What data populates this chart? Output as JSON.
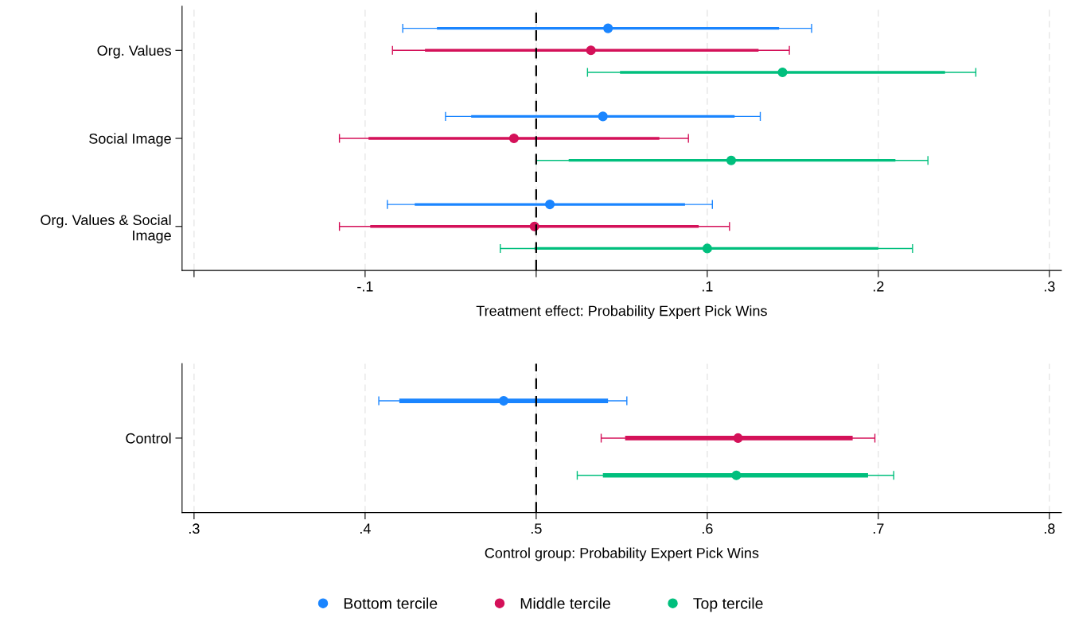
{
  "chart_data": [
    {
      "type": "scatter",
      "orientation": "horizontal",
      "xlabel": "Treatment effect: Probability Expert Pick Wins",
      "categories": [
        "Org. Values",
        "Social Image",
        "Org. Values & Social\nImage"
      ],
      "xlim": [
        -0.207,
        0.307
      ],
      "xticks": [
        {
          "value": -0.2,
          "label": null
        },
        {
          "value": -0.1,
          "label": "-.1"
        },
        {
          "value": 0,
          "label": null
        },
        {
          "value": 0.1,
          "label": ".1"
        },
        {
          "value": 0.2,
          "label": ".2"
        },
        {
          "value": 0.3,
          "label": ".3"
        }
      ],
      "grid": "x",
      "marker": "circle",
      "legend": "bottom",
      "ref_lines": [
        {
          "axis": "x",
          "value": 0,
          "color": "#000000",
          "line_style": "dashed"
        }
      ],
      "series": [
        {
          "name": "Bottom tercile",
          "color": "#1a85ff",
          "values": [
            0.042,
            0.039,
            0.008
          ],
          "errors": [
            [
              -0.078,
              0.161
            ],
            [
              -0.053,
              0.131
            ],
            [
              -0.087,
              0.103
            ]
          ]
        },
        {
          "name": "Middle tercile",
          "color": "#d41159",
          "values": [
            0.032,
            -0.013,
            -0.001
          ],
          "errors": [
            [
              -0.084,
              0.148
            ],
            [
              -0.115,
              0.089
            ],
            [
              -0.115,
              0.113
            ]
          ]
        },
        {
          "name": "Top tercile",
          "color": "#00bf7d",
          "values": [
            0.144,
            0.114,
            0.1
          ],
          "errors": [
            [
              0.03,
              0.257
            ],
            [
              0.0,
              0.229
            ],
            [
              -0.021,
              0.22
            ]
          ]
        },
        {
          "type": "bar",
          "color": "#1a85ff",
          "base": [
            -0.058,
            -0.038,
            -0.071
          ],
          "values": [
            0.2,
            0.154,
            0.158
          ]
        },
        {
          "type": "bar",
          "color": "#d41159",
          "base": [
            -0.065,
            -0.098,
            -0.097
          ],
          "values": [
            0.195,
            0.17,
            0.192
          ]
        },
        {
          "type": "bar",
          "color": "#00bf7d",
          "base": [
            0.049,
            0.019,
            -0.001
          ],
          "values": [
            0.19,
            0.191,
            0.201
          ]
        }
      ]
    },
    {
      "type": "scatter",
      "orientation": "horizontal",
      "xlabel": "Control group: Probability Expert Pick Wins",
      "categories": [
        "Control"
      ],
      "xlim": [
        0.293,
        0.807
      ],
      "xticks": [
        {
          "value": 0.3,
          "label": ".3"
        },
        {
          "value": 0.4,
          "label": ".4"
        },
        {
          "value": 0.5,
          "label": ".5"
        },
        {
          "value": 0.6,
          "label": ".6"
        },
        {
          "value": 0.7,
          "label": ".7"
        },
        {
          "value": 0.8,
          "label": ".8"
        }
      ],
      "grid": "x",
      "marker": "circle",
      "ref_lines": [
        {
          "axis": "x",
          "value": 0.5,
          "color": "#000000",
          "line_style": "dashed"
        }
      ],
      "series": [
        {
          "color": "#1a85ff",
          "values": [
            0.481
          ],
          "errors": [
            [
              0.408,
              0.553
            ]
          ]
        },
        {
          "color": "#d41159",
          "values": [
            0.618
          ],
          "errors": [
            [
              0.538,
              0.698
            ]
          ]
        },
        {
          "color": "#00bf7d",
          "values": [
            0.617
          ],
          "errors": [
            [
              0.524,
              0.709
            ]
          ]
        },
        {
          "type": "bar",
          "color": "#1a85ff",
          "base": [
            0.42
          ],
          "values": [
            0.122
          ]
        },
        {
          "type": "bar",
          "color": "#d41159",
          "base": [
            0.552
          ],
          "values": [
            0.133
          ]
        },
        {
          "type": "bar",
          "color": "#00bf7d",
          "base": [
            0.539
          ],
          "values": [
            0.155
          ]
        }
      ]
    }
  ]
}
